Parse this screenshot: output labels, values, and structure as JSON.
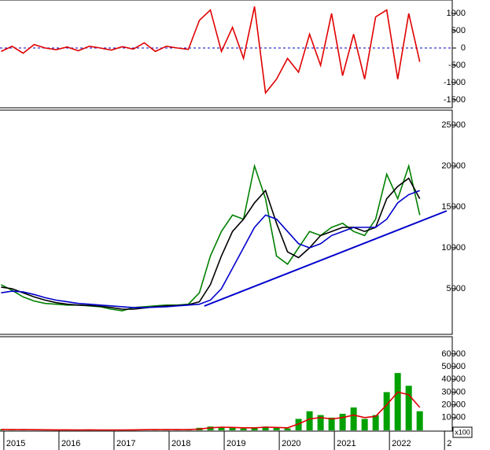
{
  "chart_data": [
    {
      "type": "line",
      "x": [
        2014.95,
        2015.15,
        2015.35,
        2015.55,
        2015.75,
        2015.95,
        2016.15,
        2016.35,
        2016.55,
        2016.75,
        2016.95,
        2017.15,
        2017.35,
        2017.55,
        2017.75,
        2017.95,
        2018.15,
        2018.35,
        2018.55,
        2018.75,
        2018.95,
        2019.15,
        2019.35,
        2019.55,
        2019.75,
        2019.95,
        2020.15,
        2020.35,
        2020.55,
        2020.75,
        2020.95,
        2021.15,
        2021.35,
        2021.55,
        2021.75,
        2021.95,
        2022.15,
        2022.35,
        2022.55
      ],
      "xlim": [
        2014.93,
        2023.14
      ],
      "ylim": [
        -1730,
        1390
      ],
      "yticks": [
        -1500,
        -1000,
        -500,
        0,
        500,
        1000
      ],
      "reference_line": 0,
      "reference_color": "#0000cc",
      "series": [
        {
          "color": "#e00000",
          "values": [
            -100,
            50,
            -150,
            100,
            0,
            -50,
            30,
            -80,
            50,
            0,
            -60,
            40,
            -30,
            150,
            -100,
            50,
            0,
            -40,
            800,
            1100,
            -100,
            600,
            -300,
            1200,
            -1300,
            -900,
            -300,
            -700,
            400,
            -500,
            1000,
            -800,
            400,
            -900,
            900,
            1100,
            -900,
            1000,
            -400
          ]
        }
      ]
    },
    {
      "type": "line",
      "x": [
        2014.95,
        2015.15,
        2015.35,
        2015.55,
        2015.75,
        2015.95,
        2016.15,
        2016.35,
        2016.55,
        2016.75,
        2016.95,
        2017.15,
        2017.35,
        2017.55,
        2017.75,
        2017.95,
        2018.15,
        2018.35,
        2018.55,
        2018.75,
        2018.95,
        2019.15,
        2019.35,
        2019.55,
        2019.75,
        2019.95,
        2020.15,
        2020.35,
        2020.55,
        2020.75,
        2020.95,
        2021.15,
        2021.35,
        2021.55,
        2021.75,
        2021.95,
        2022.15,
        2022.35,
        2022.55
      ],
      "xlim": [
        2014.93,
        2023.14
      ],
      "ylim": [
        -580,
        26830
      ],
      "yticks": [
        5000,
        10000,
        15000,
        20000,
        25000
      ],
      "series": [
        {
          "color": "#008000",
          "values": [
            5500,
            4800,
            4000,
            3500,
            3200,
            3100,
            3000,
            3000,
            2900,
            2800,
            2500,
            2300,
            2700,
            2800,
            2900,
            3000,
            3000,
            3100,
            4500,
            9000,
            12000,
            14000,
            13500,
            20000,
            16000,
            9000,
            8000,
            10000,
            12000,
            11500,
            12500,
            13000,
            12000,
            11500,
            13500,
            19000,
            16000,
            20000,
            14000
          ]
        },
        {
          "color": "#000000",
          "values": [
            5200,
            5000,
            4500,
            4000,
            3600,
            3300,
            3100,
            3000,
            2950,
            2850,
            2700,
            2500,
            2500,
            2650,
            2800,
            2900,
            2950,
            3050,
            3400,
            5500,
            9000,
            12000,
            13500,
            15500,
            17000,
            13000,
            9500,
            8800,
            10000,
            11500,
            12000,
            12500,
            12500,
            12000,
            12500,
            16000,
            17500,
            18500,
            16000
          ]
        },
        {
          "color": "#0000cc",
          "values": [
            4500,
            4700,
            4600,
            4300,
            3900,
            3600,
            3400,
            3200,
            3100,
            3000,
            2900,
            2800,
            2700,
            2700,
            2750,
            2800,
            2900,
            3000,
            3100,
            3600,
            5000,
            7500,
            10000,
            12500,
            14000,
            13500,
            12000,
            10500,
            10000,
            10500,
            11500,
            12000,
            12500,
            12500,
            12500,
            13500,
            15500,
            16500,
            17000
          ]
        }
      ],
      "trendline": {
        "color": "#0000cc",
        "x": [
          2018.64,
          2023.04
        ],
        "values": [
          2885,
          14520
        ]
      }
    },
    {
      "type": "bar",
      "x": [
        2014.95,
        2015.15,
        2015.35,
        2015.55,
        2015.75,
        2015.95,
        2016.15,
        2016.35,
        2016.55,
        2016.75,
        2016.95,
        2017.15,
        2017.35,
        2017.55,
        2017.75,
        2017.95,
        2018.15,
        2018.35,
        2018.55,
        2018.75,
        2018.95,
        2019.15,
        2019.35,
        2019.55,
        2019.75,
        2019.95,
        2020.15,
        2020.35,
        2020.55,
        2020.75,
        2020.95,
        2021.15,
        2021.35,
        2021.55,
        2021.75,
        2021.95,
        2022.15,
        2022.35,
        2022.55
      ],
      "xlim": [
        2014.93,
        2023.14
      ],
      "ylim": [
        -600,
        73500
      ],
      "yticks": [
        0,
        10000,
        20000,
        30000,
        40000,
        50000,
        60000
      ],
      "xticks": [
        2015,
        2016,
        2017,
        2018,
        2019,
        2020,
        2021,
        2022,
        {
          "value": 2023,
          "label": "2"
        }
      ],
      "axis_note": "x100",
      "color": "#00a000",
      "values": [
        800,
        500,
        600,
        400,
        500,
        300,
        400,
        300,
        500,
        300,
        400,
        300,
        500,
        600,
        500,
        700,
        600,
        500,
        2000,
        3000,
        2500,
        2000,
        1500,
        2000,
        3000,
        2000,
        1500,
        9000,
        15000,
        12000,
        10000,
        13000,
        18000,
        9000,
        12000,
        30000,
        45000,
        35000,
        15000
      ],
      "series": [
        {
          "color": "#e00000",
          "values": [
            700,
            600,
            550,
            500,
            450,
            400,
            400,
            350,
            400,
            350,
            350,
            350,
            400,
            500,
            550,
            600,
            600,
            550,
            1000,
            2000,
            2500,
            2300,
            2000,
            2000,
            2500,
            2300,
            2000,
            5000,
            9000,
            10000,
            9000,
            10000,
            12000,
            10000,
            11000,
            20000,
            30000,
            28000,
            18000
          ]
        }
      ]
    }
  ]
}
